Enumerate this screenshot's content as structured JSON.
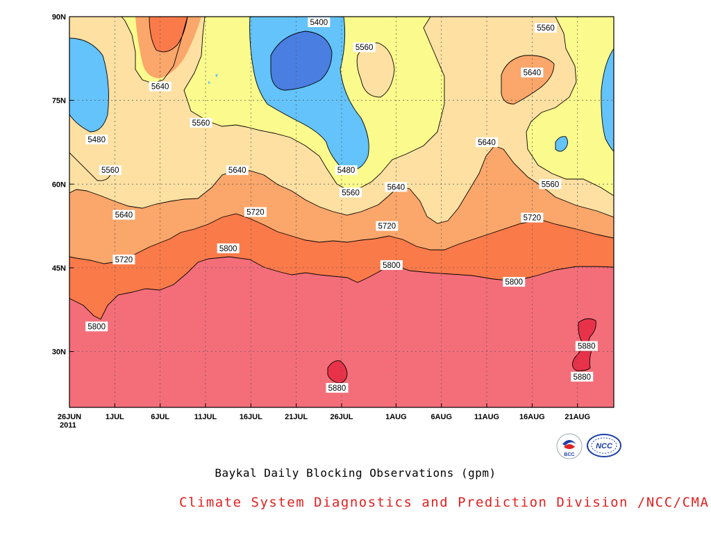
{
  "chart_data": {
    "type": "contour",
    "title": "Baykal Daily Blocking Observations (gpm)",
    "source": "Climate System Diagnostics and Prediction Division /NCC/CMA",
    "x_ticks": [
      "26JUN\n2011",
      "1JUL",
      "6JUL",
      "11JUL",
      "16JUL",
      "21JUL",
      "26JUL",
      "1AUG",
      "6AUG",
      "11AUG",
      "16AUG",
      "21AUG"
    ],
    "x_tick_days": [
      0,
      5,
      10,
      15,
      20,
      25,
      30,
      36,
      41,
      46,
      51,
      56
    ],
    "xlim_days": [
      0,
      60
    ],
    "y_ticks": [
      "30N",
      "45N",
      "60N",
      "75N",
      "90N"
    ],
    "y_tick_lat": [
      30,
      45,
      60,
      75,
      90
    ],
    "ylim": [
      20,
      90
    ],
    "grid": "dotted",
    "contour_levels": [
      5400,
      5480,
      5560,
      5640,
      5720,
      5800,
      5880
    ],
    "colors": {
      "below_5400": "#4a7ee0",
      "5400_5480": "#63c3fa",
      "5480_5560": "#fbfa8d",
      "5560_5640": "#fde0a2",
      "5640_5720": "#fba66a",
      "5720_5800": "#fb7a4a",
      "5800_5880": "#f46e7a",
      "above_5880": "#e8324a"
    },
    "contour_labels": [
      {
        "text": "5400",
        "day": 27.5,
        "lat": 89
      },
      {
        "text": "5560",
        "day": 32.5,
        "lat": 84.5
      },
      {
        "text": "5560",
        "day": 52.5,
        "lat": 88
      },
      {
        "text": "5640",
        "day": 51,
        "lat": 80
      },
      {
        "text": "5640",
        "day": 10,
        "lat": 77.5
      },
      {
        "text": "5560",
        "day": 14.5,
        "lat": 71
      },
      {
        "text": "5480",
        "day": 3,
        "lat": 68
      },
      {
        "text": "5640",
        "day": 46,
        "lat": 67.5
      },
      {
        "text": "5480",
        "day": 30.5,
        "lat": 62.5
      },
      {
        "text": "5560",
        "day": 4.5,
        "lat": 62.5
      },
      {
        "text": "5640",
        "day": 18.5,
        "lat": 62.5
      },
      {
        "text": "5560",
        "day": 31,
        "lat": 58.5
      },
      {
        "text": "5640",
        "day": 36,
        "lat": 59.5
      },
      {
        "text": "5560",
        "day": 53,
        "lat": 60
      },
      {
        "text": "5640",
        "day": 6,
        "lat": 54.5
      },
      {
        "text": "5720",
        "day": 20.5,
        "lat": 55
      },
      {
        "text": "5720",
        "day": 35,
        "lat": 52.5
      },
      {
        "text": "5720",
        "day": 51,
        "lat": 54
      },
      {
        "text": "5720",
        "day": 6,
        "lat": 46.5
      },
      {
        "text": "5800",
        "day": 17.5,
        "lat": 48.5
      },
      {
        "text": "5800",
        "day": 35.5,
        "lat": 45.5
      },
      {
        "text": "5800",
        "day": 49,
        "lat": 42.5
      },
      {
        "text": "5800",
        "day": 3,
        "lat": 34.5
      },
      {
        "text": "5880",
        "day": 29.5,
        "lat": 23.5
      },
      {
        "text": "5880",
        "day": 57,
        "lat": 31
      },
      {
        "text": "5880",
        "day": 56.5,
        "lat": 25.5
      }
    ]
  },
  "logos": {
    "left_logo_text": "BCC",
    "right_logo_text": "NCC"
  }
}
